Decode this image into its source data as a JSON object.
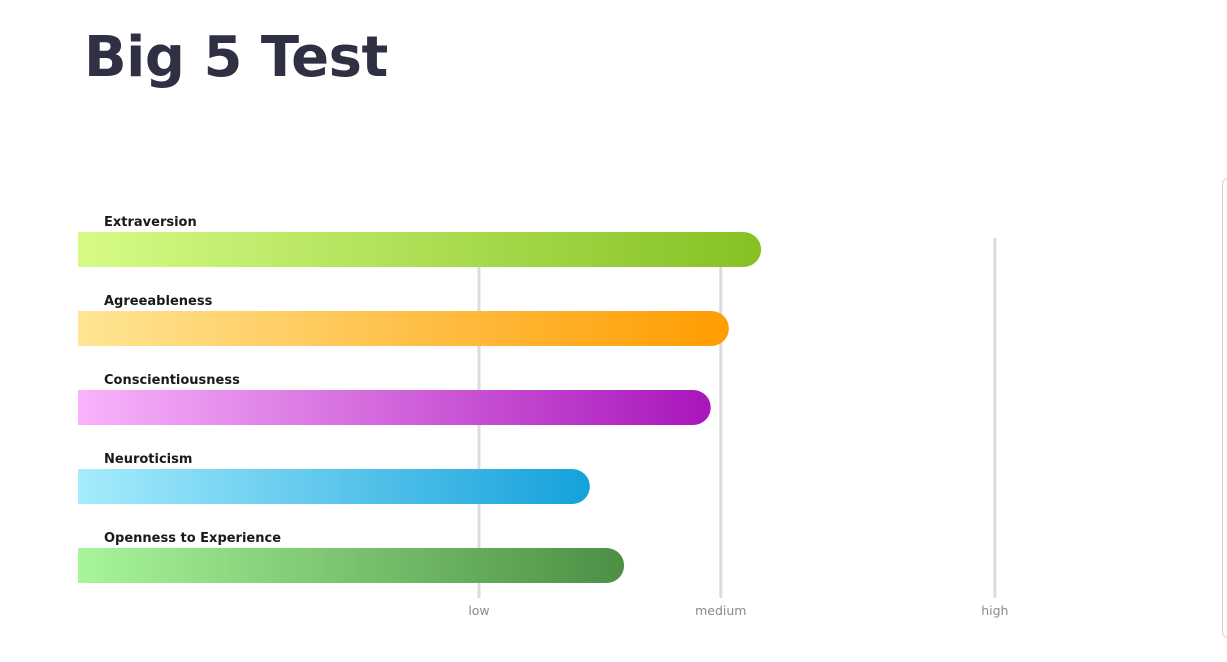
{
  "page": {
    "title": "Big 5 Test"
  },
  "chart_data": {
    "type": "bar",
    "orientation": "horizontal",
    "title": "",
    "xlabel": "",
    "ylabel": "",
    "categories": [
      "Extraversion",
      "Agreeableness",
      "Conscientiousness",
      "Neuroticism",
      "Openness to Experience"
    ],
    "values": [
      70,
      62,
      57.5,
      27.5,
      36
    ],
    "xlim": [
      -72,
      100
    ],
    "ticks": [
      {
        "label": "low",
        "value": 0
      },
      {
        "label": "medium",
        "value": 60
      },
      {
        "label": "high",
        "value": 128
      }
    ],
    "grid": true,
    "legend": "none",
    "colors": [
      {
        "from": "#d6fb86",
        "to": "#85c123"
      },
      {
        "from": "#ffe594",
        "to": "#ff9c00"
      },
      {
        "from": "#f8b4fb",
        "to": "#a915bb"
      },
      {
        "from": "#a5ecfc",
        "to": "#15a1dc"
      },
      {
        "from": "#a8f59a",
        "to": "#4c8f45"
      }
    ],
    "gridline_color": "#dcdcdc"
  }
}
